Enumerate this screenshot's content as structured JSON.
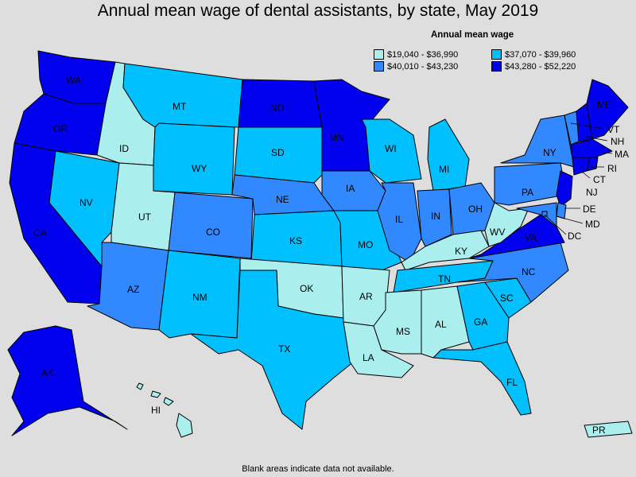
{
  "title": "Annual mean wage of dental assistants, by state, May 2019",
  "legend": {
    "title": "Annual mean wage",
    "items": [
      {
        "label": "$19,040 - $36,990",
        "color": "#aaeeee"
      },
      {
        "label": "$37,070 - $39,960",
        "color": "#00c0ff"
      },
      {
        "label": "$40,010 - $43,230",
        "color": "#3288ff"
      },
      {
        "label": "$43,280 - $52,220",
        "color": "#0000ee"
      }
    ]
  },
  "footnote": "Blank areas indicate data not available.",
  "states": {
    "WA": {
      "label": "WA",
      "tier": 3
    },
    "OR": {
      "label": "OR",
      "tier": 3
    },
    "CA": {
      "label": "CA",
      "tier": 3
    },
    "ID": {
      "label": "ID",
      "tier": 0
    },
    "NV": {
      "label": "NV",
      "tier": 1
    },
    "UT": {
      "label": "UT",
      "tier": 0
    },
    "AZ": {
      "label": "AZ",
      "tier": 2
    },
    "MT": {
      "label": "MT",
      "tier": 1
    },
    "WY": {
      "label": "WY",
      "tier": 1
    },
    "CO": {
      "label": "CO",
      "tier": 2
    },
    "NM": {
      "label": "NM",
      "tier": 1
    },
    "ND": {
      "label": "ND",
      "tier": 3
    },
    "SD": {
      "label": "SD",
      "tier": 1
    },
    "NE": {
      "label": "NE",
      "tier": 2
    },
    "KS": {
      "label": "KS",
      "tier": 1
    },
    "OK": {
      "label": "OK",
      "tier": 0
    },
    "TX": {
      "label": "TX",
      "tier": 1
    },
    "MN": {
      "label": "MN",
      "tier": 3
    },
    "IA": {
      "label": "IA",
      "tier": 2
    },
    "MO": {
      "label": "MO",
      "tier": 1
    },
    "AR": {
      "label": "AR",
      "tier": 0
    },
    "LA": {
      "label": "LA",
      "tier": 0
    },
    "WI": {
      "label": "WI",
      "tier": 1
    },
    "IL": {
      "label": "IL",
      "tier": 2
    },
    "MI": {
      "label": "MI",
      "tier": 1
    },
    "IN": {
      "label": "IN",
      "tier": 2
    },
    "OH": {
      "label": "OH",
      "tier": 2
    },
    "KY": {
      "label": "KY",
      "tier": 0
    },
    "TN": {
      "label": "TN",
      "tier": 1
    },
    "MS": {
      "label": "MS",
      "tier": 0
    },
    "AL": {
      "label": "AL",
      "tier": 0
    },
    "GA": {
      "label": "GA",
      "tier": 1
    },
    "FL": {
      "label": "FL",
      "tier": 1
    },
    "SC": {
      "label": "SC",
      "tier": 1
    },
    "NC": {
      "label": "NC",
      "tier": 2
    },
    "VA": {
      "label": "VA",
      "tier": 3
    },
    "WV": {
      "label": "WV",
      "tier": 0
    },
    "PA": {
      "label": "PA",
      "tier": 2
    },
    "NY": {
      "label": "NY",
      "tier": 2
    },
    "VT": {
      "label": "VT",
      "tier": 2
    },
    "NH": {
      "label": "NH",
      "tier": 3
    },
    "ME": {
      "label": "ME",
      "tier": 3
    },
    "MA": {
      "label": "MA",
      "tier": 3
    },
    "RI": {
      "label": "RI",
      "tier": 3
    },
    "CT": {
      "label": "CT",
      "tier": 3
    },
    "NJ": {
      "label": "NJ",
      "tier": 3
    },
    "DE": {
      "label": "DE",
      "tier": 2
    },
    "MD": {
      "label": "MD",
      "tier": 2
    },
    "DC": {
      "label": "DC",
      "tier": 2
    },
    "AK": {
      "label": "AK",
      "tier": 3
    },
    "HI": {
      "label": "HI",
      "tier": 0
    },
    "PR": {
      "label": "PR",
      "tier": 0
    }
  }
}
